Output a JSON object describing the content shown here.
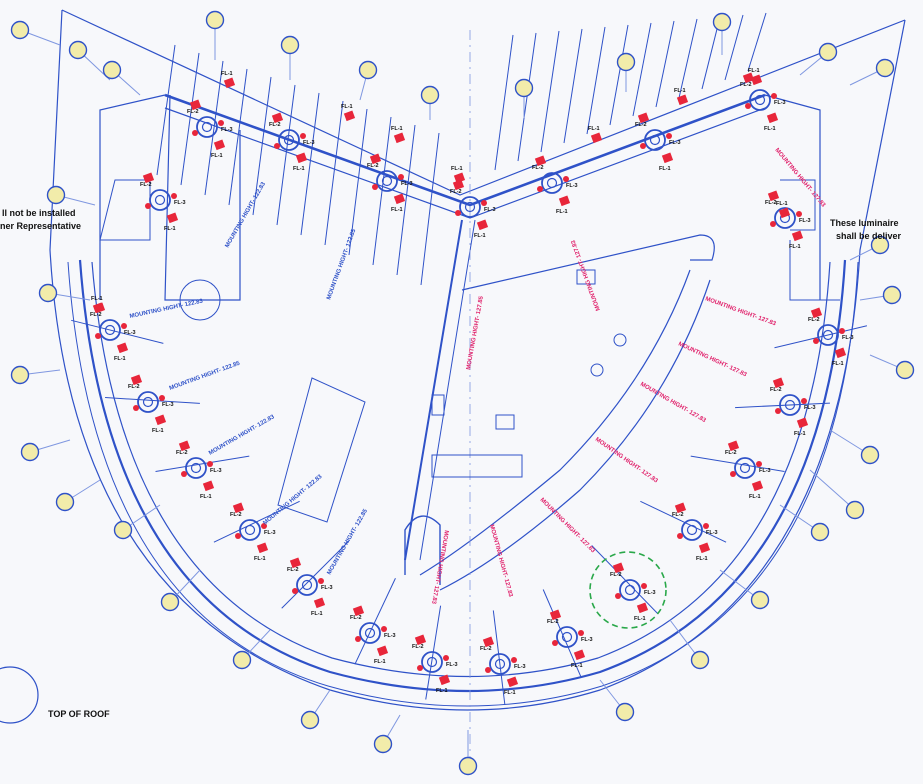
{
  "drawing": {
    "title": "TOP OF ROOF",
    "note_left_line1": "ll not be installed",
    "note_left_line2": "ner Representative",
    "note_right_line1": "These luminaire",
    "note_right_line2": "shall be deliver"
  },
  "labels": {
    "fl1": "FL-1",
    "fl2": "FL-2",
    "fl3": "FL-3",
    "mounting_blue": "MOUNTING HIGHT- 122.83",
    "mounting_blue_b": "MOUNTING HIGHT- 122.85",
    "mounting_red": "MOUNTING HIGHT- 127.83",
    "mounting_red_b": "MOUNTING HIGHT- 127.85"
  },
  "colors": {
    "line": "#2f52c8",
    "line_light": "#7f97e0",
    "red_text": "#e0206a",
    "fixture": "#e8263a",
    "grid_bubble": "#f2ecaa",
    "highlight": "#2aa84a"
  }
}
